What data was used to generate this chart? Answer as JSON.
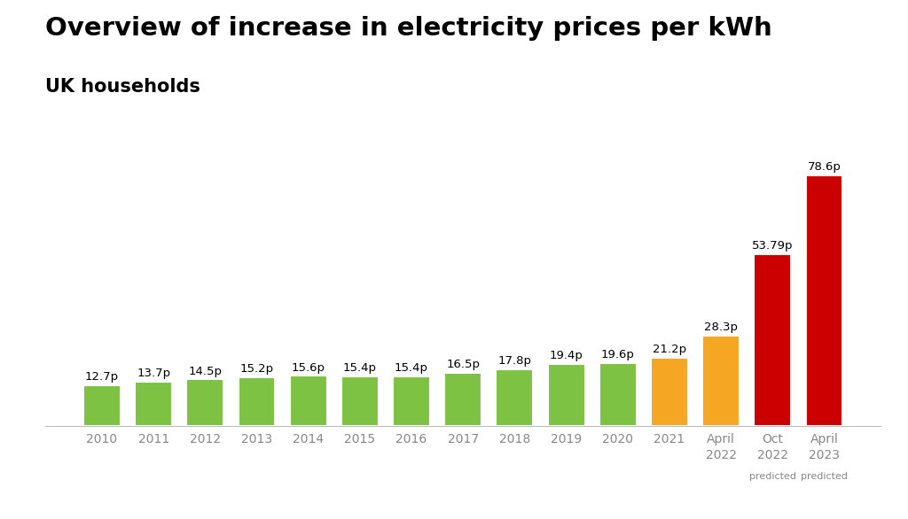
{
  "categories": [
    "2010",
    "2011",
    "2012",
    "2013",
    "2014",
    "2015",
    "2016",
    "2017",
    "2018",
    "2019",
    "2020",
    "2021",
    "April\n2022",
    "Oct\n2022",
    "April\n2023"
  ],
  "tick_labels_main": [
    "2010",
    "2011",
    "2012",
    "2013",
    "2014",
    "2015",
    "2016",
    "2017",
    "2018",
    "2019",
    "2020",
    "2021",
    "April\n2022",
    "Oct\n2022",
    "April\n2023"
  ],
  "tick_predicted": [
    false,
    false,
    false,
    false,
    false,
    false,
    false,
    false,
    false,
    false,
    false,
    false,
    false,
    true,
    true
  ],
  "values": [
    12.7,
    13.7,
    14.5,
    15.2,
    15.6,
    15.4,
    15.4,
    16.5,
    17.8,
    19.4,
    19.6,
    21.2,
    28.3,
    53.79,
    78.6
  ],
  "labels": [
    "12.7p",
    "13.7p",
    "14.5p",
    "15.2p",
    "15.6p",
    "15.4p",
    "15.4p",
    "16.5p",
    "17.8p",
    "19.4p",
    "19.6p",
    "21.2p",
    "28.3p",
    "53.79p",
    "78.6p"
  ],
  "colors": [
    "#7dc243",
    "#7dc243",
    "#7dc243",
    "#7dc243",
    "#7dc243",
    "#7dc243",
    "#7dc243",
    "#7dc243",
    "#7dc243",
    "#7dc243",
    "#7dc243",
    "#f5a623",
    "#f5a623",
    "#cc0000",
    "#cc0000"
  ],
  "title": "Overview of increase in electricity prices per kWh",
  "subtitle": "UK households",
  "title_fontsize": 21,
  "subtitle_fontsize": 15,
  "background_color": "#ffffff",
  "ylim": [
    0,
    88
  ],
  "bar_width": 0.72,
  "label_fontsize": 9.5,
  "tick_fontsize": 10,
  "predicted_fontsize": 8,
  "tick_color": "#888888"
}
